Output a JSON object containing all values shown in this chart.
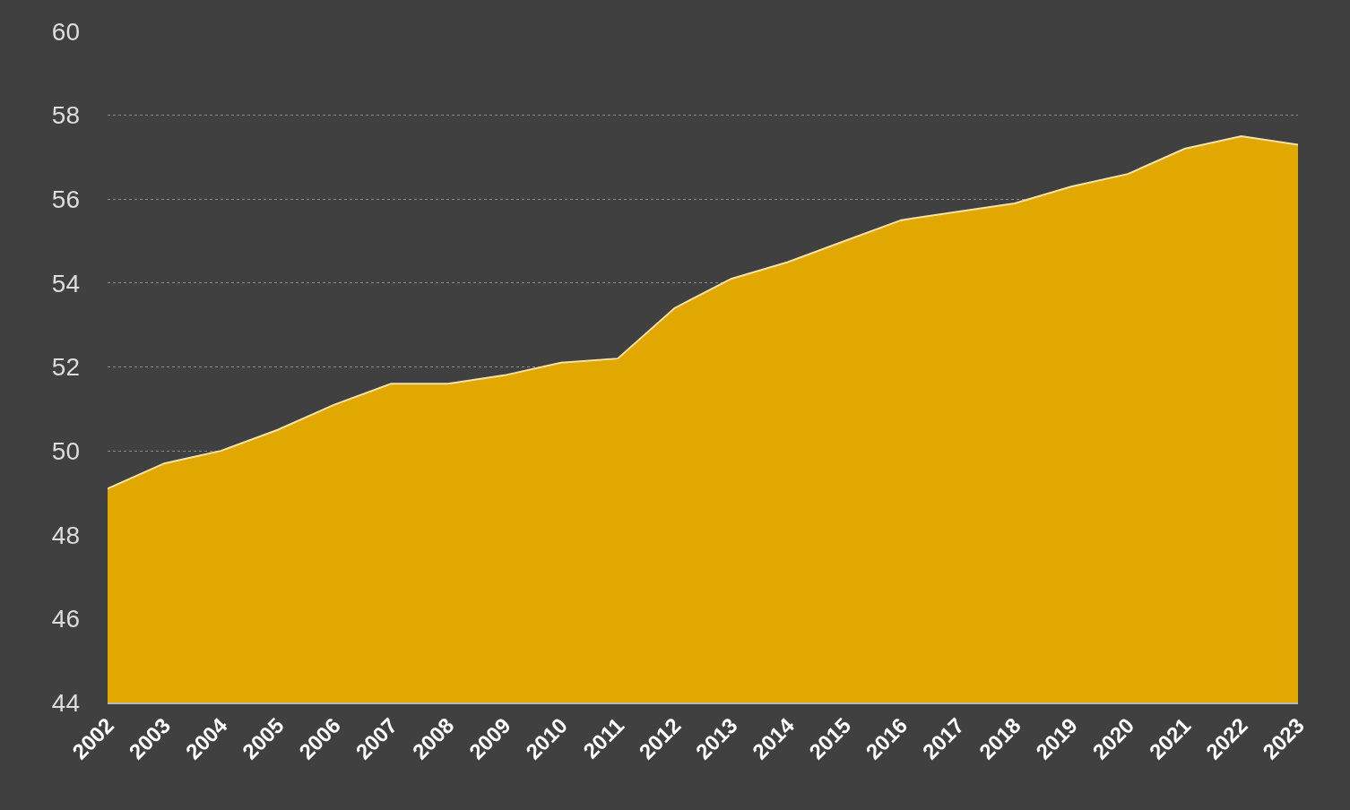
{
  "chart_data": {
    "type": "area",
    "categories": [
      "2002",
      "2003",
      "2004",
      "2005",
      "2006",
      "2007",
      "2008",
      "2009",
      "2010",
      "2011",
      "2012",
      "2013",
      "2014",
      "2015",
      "2016",
      "2017",
      "2018",
      "2019",
      "2020",
      "2021",
      "2022",
      "2023"
    ],
    "series": [
      {
        "color": "#e0a800",
        "values": [
          49.1,
          49.7,
          50.0,
          50.5,
          51.1,
          51.6,
          51.6,
          51.8,
          52.1,
          52.2,
          53.4,
          54.1,
          54.5,
          55.0,
          55.5,
          55.7,
          55.9,
          56.3,
          56.6,
          57.2,
          57.5,
          57.3
        ]
      }
    ],
    "ylim": [
      44,
      60
    ],
    "yticks": [
      44,
      46,
      48,
      50,
      52,
      54,
      56,
      58,
      60
    ],
    "grid": "y"
  }
}
